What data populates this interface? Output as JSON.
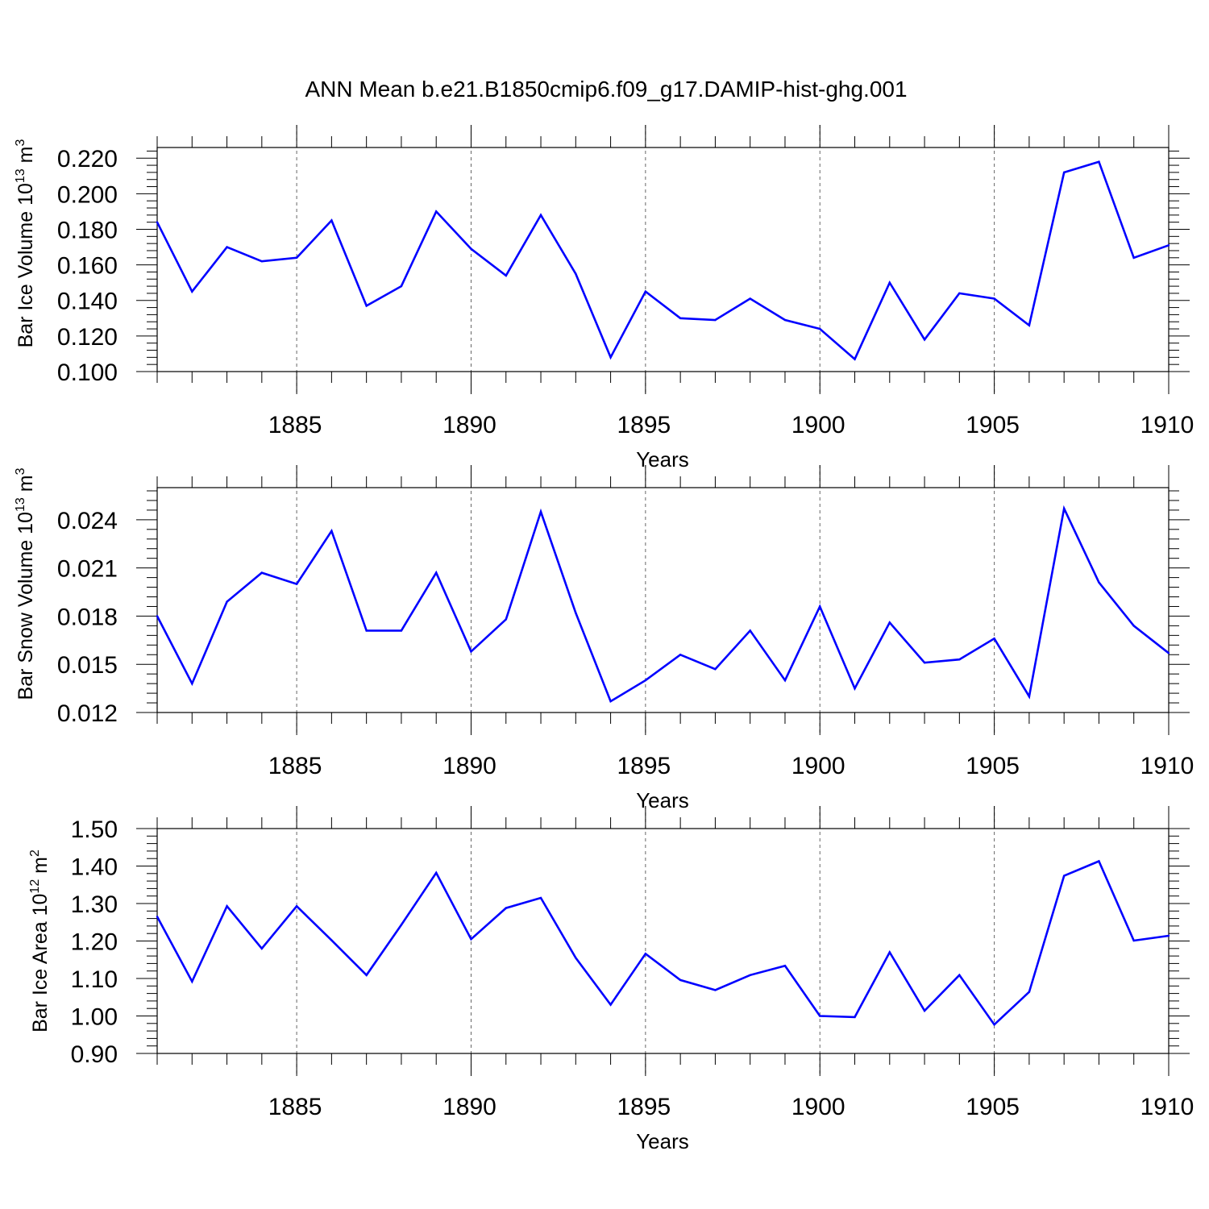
{
  "title": "ANN Mean b.e21.B1850cmip6.f09_g17.DAMIP-hist-ghg.001",
  "colors": {
    "series": "#0000ff",
    "axis": "#000000",
    "grid": "#666666"
  },
  "chart_data": [
    {
      "type": "line",
      "title": "ANN Mean b.e21.B1850cmip6.f09_g17.DAMIP-hist-ghg.001",
      "ylabel": {
        "base": "Bar Ice Volume 10",
        "exp": "13",
        "unit": " m",
        "unit_exp": "3"
      },
      "xlabel": "Years",
      "xlim": [
        1881,
        1910
      ],
      "ylim": [
        0.1,
        0.226
      ],
      "xticks": [
        1885,
        1890,
        1895,
        1900,
        1905,
        1910
      ],
      "xtick_labels": [
        "1885",
        "1890",
        "1895",
        "1900",
        "1905",
        "1910"
      ],
      "yticks": [
        0.1,
        0.12,
        0.14,
        0.16,
        0.18,
        0.2,
        0.22
      ],
      "ytick_labels": [
        "0.100",
        "0.120",
        "0.140",
        "0.160",
        "0.180",
        "0.200",
        "0.220"
      ],
      "x": [
        1881,
        1882,
        1883,
        1884,
        1885,
        1886,
        1887,
        1888,
        1889,
        1890,
        1891,
        1892,
        1893,
        1894,
        1895,
        1896,
        1897,
        1898,
        1899,
        1900,
        1901,
        1902,
        1903,
        1904,
        1905,
        1906,
        1907,
        1908,
        1909,
        1910
      ],
      "series": [
        {
          "name": "Bar Ice Volume",
          "values": [
            0.184,
            0.145,
            0.17,
            0.162,
            0.164,
            0.185,
            0.137,
            0.148,
            0.19,
            0.169,
            0.154,
            0.188,
            0.155,
            0.108,
            0.145,
            0.13,
            0.129,
            0.141,
            0.129,
            0.124,
            0.107,
            0.15,
            0.118,
            0.144,
            0.141,
            0.126,
            0.212,
            0.218,
            0.164,
            0.171
          ]
        }
      ]
    },
    {
      "type": "line",
      "title": "",
      "ylabel": {
        "base": "Bar Snow Volume 10",
        "exp": "13",
        "unit": " m",
        "unit_exp": "3"
      },
      "xlabel": "Years",
      "xlim": [
        1881,
        1910
      ],
      "ylim": [
        0.012,
        0.026
      ],
      "xticks": [
        1885,
        1890,
        1895,
        1900,
        1905,
        1910
      ],
      "xtick_labels": [
        "1885",
        "1890",
        "1895",
        "1900",
        "1905",
        "1910"
      ],
      "yticks": [
        0.012,
        0.015,
        0.018,
        0.021,
        0.024
      ],
      "ytick_labels": [
        "0.012",
        "0.015",
        "0.018",
        "0.021",
        "0.024"
      ],
      "x": [
        1881,
        1882,
        1883,
        1884,
        1885,
        1886,
        1887,
        1888,
        1889,
        1890,
        1891,
        1892,
        1893,
        1894,
        1895,
        1896,
        1897,
        1898,
        1899,
        1900,
        1901,
        1902,
        1903,
        1904,
        1905,
        1906,
        1907,
        1908,
        1909,
        1910
      ],
      "series": [
        {
          "name": "Bar Snow Volume",
          "values": [
            0.018,
            0.0138,
            0.0189,
            0.0207,
            0.02,
            0.0233,
            0.0171,
            0.0171,
            0.0207,
            0.0158,
            0.0178,
            0.0245,
            0.0182,
            0.0127,
            0.014,
            0.0156,
            0.0147,
            0.0171,
            0.014,
            0.0186,
            0.0135,
            0.0176,
            0.0151,
            0.0153,
            0.0166,
            0.013,
            0.0247,
            0.0201,
            0.0174,
            0.0157
          ]
        }
      ]
    },
    {
      "type": "line",
      "title": "",
      "ylabel": {
        "base": "Bar Ice Area 10",
        "exp": "12",
        "unit": " m",
        "unit_exp": "2"
      },
      "xlabel": "Years",
      "xlim": [
        1881,
        1910
      ],
      "ylim": [
        0.9,
        1.5
      ],
      "xticks": [
        1885,
        1890,
        1895,
        1900,
        1905,
        1910
      ],
      "xtick_labels": [
        "1885",
        "1890",
        "1895",
        "1900",
        "1905",
        "1910"
      ],
      "yticks": [
        0.9,
        1.0,
        1.1,
        1.2,
        1.3,
        1.4,
        1.5
      ],
      "ytick_labels": [
        "0.90",
        "1.00",
        "1.10",
        "1.20",
        "1.30",
        "1.40",
        "1.50"
      ],
      "x": [
        1881,
        1882,
        1883,
        1884,
        1885,
        1886,
        1887,
        1888,
        1889,
        1890,
        1891,
        1892,
        1893,
        1894,
        1895,
        1896,
        1897,
        1898,
        1899,
        1900,
        1901,
        1902,
        1903,
        1904,
        1905,
        1906,
        1907,
        1908,
        1909,
        1910
      ],
      "series": [
        {
          "name": "Bar Ice Area",
          "values": [
            1.265,
            1.092,
            1.293,
            1.18,
            1.293,
            1.202,
            1.109,
            1.243,
            1.382,
            1.205,
            1.288,
            1.315,
            1.155,
            1.03,
            1.166,
            1.096,
            1.069,
            1.109,
            1.134,
            1.0,
            0.997,
            1.17,
            1.014,
            1.109,
            0.977,
            1.064,
            1.374,
            1.413,
            1.201,
            1.214
          ]
        }
      ]
    }
  ]
}
